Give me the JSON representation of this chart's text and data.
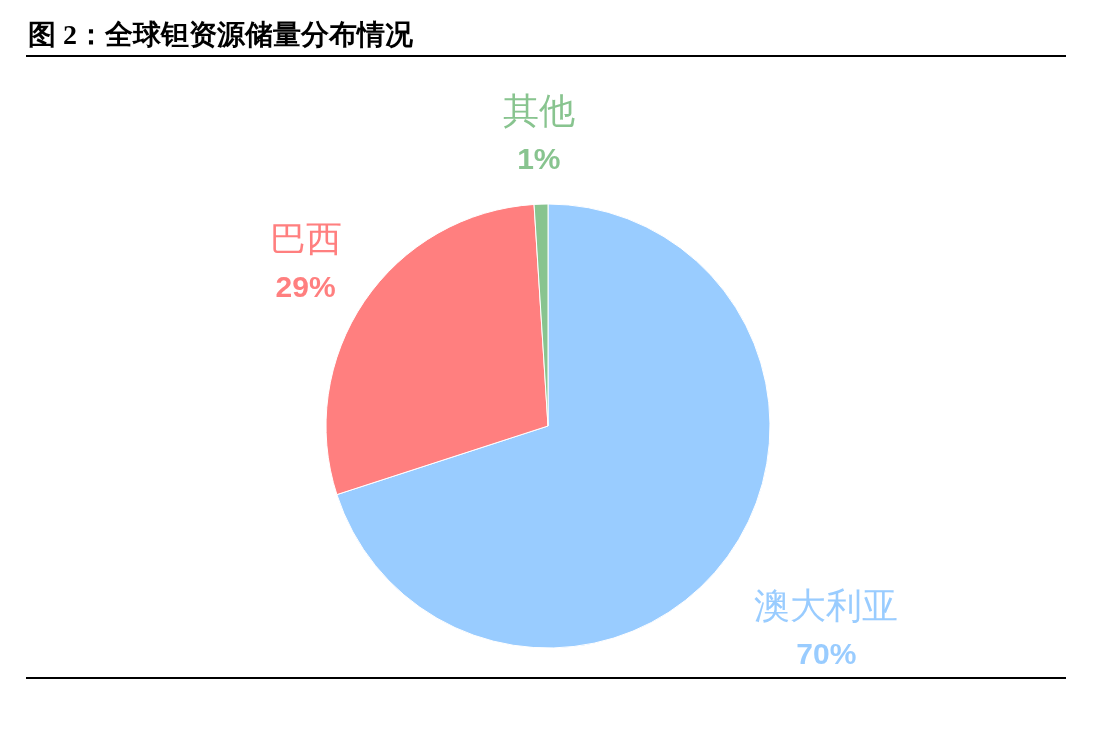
{
  "chart_data": {
    "type": "pie",
    "title": "图 2：全球钽资源储量分布情况",
    "categories": [
      "澳大利亚",
      "巴西",
      "其他"
    ],
    "values": [
      70,
      29,
      1
    ],
    "colors": [
      "#99ccff",
      "#ff7f7f",
      "#88c48f"
    ],
    "value_labels": [
      "70%",
      "29%",
      "1%"
    ]
  }
}
